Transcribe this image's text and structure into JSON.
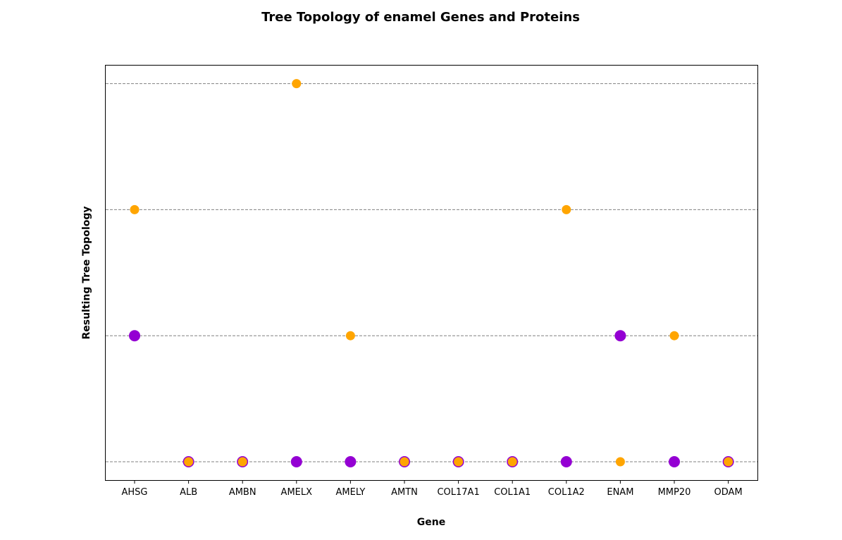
{
  "chart_data": {
    "type": "scatter",
    "title": "Tree Topology of enamel Genes and Proteins",
    "xlabel": "Gene",
    "ylabel": "Resulting Tree Topology",
    "categories": [
      "AHSG",
      "ALB",
      "AMBN",
      "AMELX",
      "AMELY",
      "AMTN",
      "COL17A1",
      "COL1A1",
      "COL1A2",
      "ENAM",
      "MMP20",
      "ODAM"
    ],
    "y_levels": 4,
    "grid": "horizontal dashed",
    "series": [
      {
        "color": "#9400D3",
        "marker": "large",
        "points": [
          {
            "x": "AHSG",
            "y": 1
          },
          {
            "x": "ALB",
            "y": 0
          },
          {
            "x": "AMBN",
            "y": 0
          },
          {
            "x": "AMELX",
            "y": 0
          },
          {
            "x": "AMELY",
            "y": 0
          },
          {
            "x": "AMTN",
            "y": 0
          },
          {
            "x": "COL17A1",
            "y": 0
          },
          {
            "x": "COL1A1",
            "y": 0
          },
          {
            "x": "COL1A2",
            "y": 0
          },
          {
            "x": "ENAM",
            "y": 1
          },
          {
            "x": "MMP20",
            "y": 0
          },
          {
            "x": "ODAM",
            "y": 0
          }
        ]
      },
      {
        "color": "#FFA500",
        "marker": "small",
        "points": [
          {
            "x": "AHSG",
            "y": 2
          },
          {
            "x": "ALB",
            "y": 0
          },
          {
            "x": "AMBN",
            "y": 0
          },
          {
            "x": "AMELX",
            "y": 3
          },
          {
            "x": "AMELY",
            "y": 1
          },
          {
            "x": "AMTN",
            "y": 0
          },
          {
            "x": "COL17A1",
            "y": 0
          },
          {
            "x": "COL1A1",
            "y": 0
          },
          {
            "x": "COL1A2",
            "y": 2
          },
          {
            "x": "ENAM",
            "y": 0
          },
          {
            "x": "MMP20",
            "y": 1
          },
          {
            "x": "ODAM",
            "y": 0
          }
        ]
      }
    ]
  }
}
